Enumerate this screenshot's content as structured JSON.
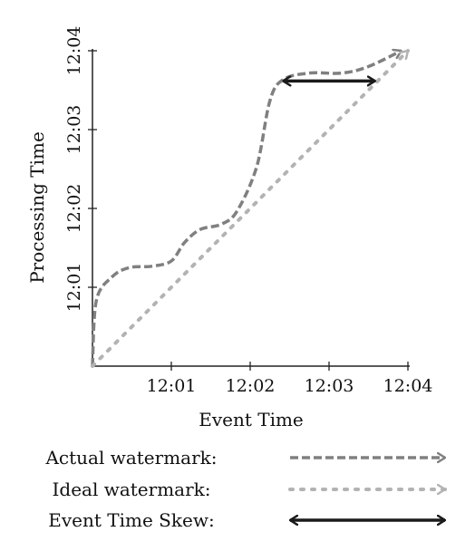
{
  "chart_data": {
    "type": "line",
    "xlabel": "Event Time",
    "ylabel": "Processing Time",
    "x_ticks": [
      "12:01",
      "12:02",
      "12:03",
      "12:04"
    ],
    "y_ticks": [
      "12:01",
      "12:02",
      "12:03",
      "12:04"
    ],
    "xlim": [
      "12:00",
      "12:04"
    ],
    "ylim": [
      "12:00",
      "12:04"
    ],
    "grid": false,
    "legend_placement": "bottom",
    "series": [
      {
        "name": "Actual watermark:",
        "style": "dashed",
        "color": "#808080",
        "x": [
          "12:00:00",
          "12:00:03",
          "12:00:15",
          "12:00:28",
          "12:00:45",
          "12:01:00",
          "12:01:10",
          "12:01:22",
          "12:01:38",
          "12:01:50",
          "12:02:05",
          "12:02:15",
          "12:02:25",
          "12:02:45",
          "12:03:10",
          "12:03:30",
          "12:03:55"
        ],
        "y": [
          "12:00:00",
          "12:00:50",
          "12:01:08",
          "12:01:15",
          "12:01:16",
          "12:01:20",
          "12:01:34",
          "12:01:44",
          "12:01:48",
          "12:01:58",
          "12:02:32",
          "12:03:22",
          "12:03:38",
          "12:03:43",
          "12:03:43",
          "12:03:48",
          "12:04:00"
        ]
      },
      {
        "name": "Ideal watermark:",
        "style": "dotted",
        "color": "#b3b3b3",
        "x": [
          "12:00",
          "12:04"
        ],
        "y": [
          "12:00",
          "12:04"
        ]
      }
    ],
    "annotations": [
      {
        "name": "Event Time Skew:",
        "type": "double-arrow",
        "color": "#1a1a1a",
        "x": [
          "12:02:25",
          "12:03:35"
        ],
        "y": "12:03:37"
      }
    ]
  }
}
